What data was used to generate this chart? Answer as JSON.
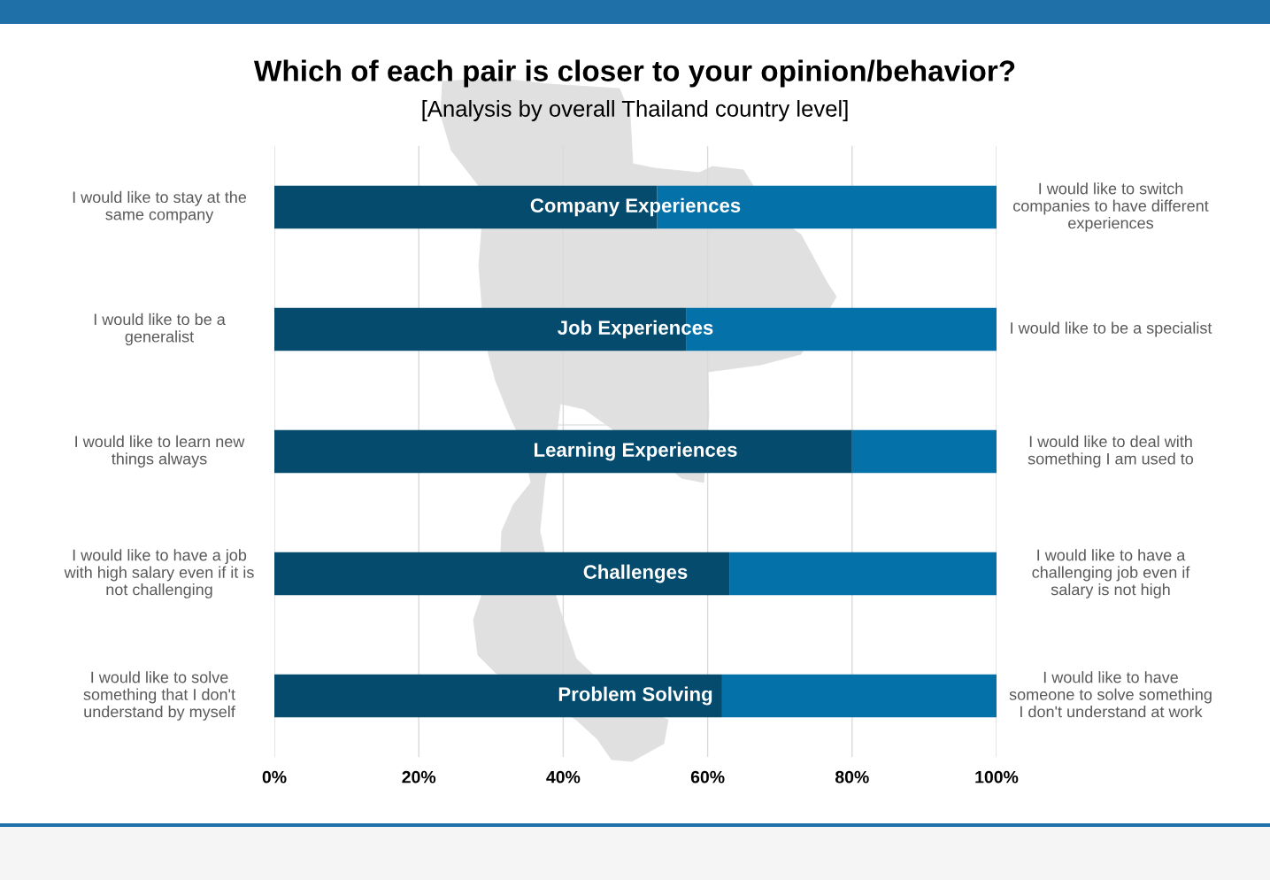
{
  "chart_data": {
    "type": "bar",
    "orientation": "horizontal",
    "stacked": true,
    "title": "Which of each pair is closer to your opinion/behavior?",
    "subtitle": "[Analysis by overall Thailand country level]",
    "categories": [
      "Company Experiences",
      "Job Experiences",
      "Learning Experiences",
      "Challenges",
      "Problem Solving"
    ],
    "series": [
      {
        "color": "#054b6e",
        "values": [
          53,
          57,
          80,
          63,
          62
        ]
      },
      {
        "color": "#0571a9",
        "values": [
          47,
          43,
          20,
          37,
          38
        ]
      }
    ],
    "xlim": [
      0,
      100
    ],
    "xticks": [
      {
        "value": 0,
        "label": "0%"
      },
      {
        "value": 20,
        "label": "20%"
      },
      {
        "value": 40,
        "label": "40%"
      },
      {
        "value": 60,
        "label": "60%"
      },
      {
        "value": 80,
        "label": "80%"
      },
      {
        "value": 100,
        "label": "100%"
      }
    ],
    "grid": "x",
    "annotations": [
      "I would like to stay at the\nsame company",
      "I would like to switch\ncompanies to have different\nexperiences",
      "I would like to be a\ngeneralist",
      "I would like to be a specialist",
      "I would like to learn new\nthings always",
      "I would like to deal with\nsomething I am used to",
      "I would like to have a job\nwith high salary even if it is\nnot challenging",
      "I would like to have a\nchallenging job even if\nsalary is not high",
      "I would like to solve\nsomething that I don't\nunderstand by myself",
      "I would like to have\nsomeone to solve something\nI don't understand at work"
    ]
  }
}
